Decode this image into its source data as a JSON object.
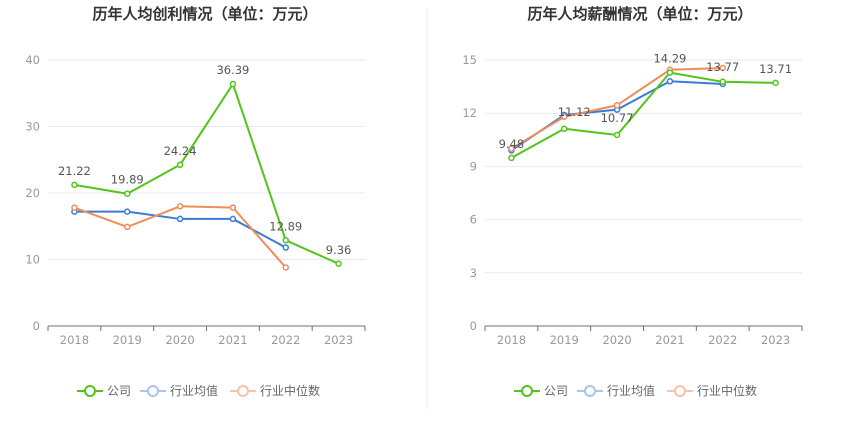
{
  "chart_data": [
    {
      "type": "line",
      "title": "历年人均创利情况（单位：万元）",
      "xlabel": "",
      "ylabel": "",
      "categories": [
        "2018",
        "2019",
        "2020",
        "2021",
        "2022",
        "2023"
      ],
      "yticks": [
        "0",
        "10",
        "20",
        "30",
        "40"
      ],
      "ylim": [
        0,
        40
      ],
      "grid": true,
      "legend_position": "bottom",
      "series": [
        {
          "name": "公司",
          "color": "#52c41a",
          "values": [
            21.22,
            19.89,
            24.24,
            36.39,
            12.89,
            9.36
          ],
          "labels": [
            "21.22",
            "19.89",
            "24.24",
            "36.39",
            "12.89",
            "9.36"
          ]
        },
        {
          "name": "行业均值",
          "color": "#3a7bd5",
          "values": [
            17.2,
            17.2,
            16.1,
            16.1,
            11.8,
            null
          ]
        },
        {
          "name": "行业中位数",
          "color": "#f08c5a",
          "values": [
            17.8,
            14.9,
            18.0,
            17.8,
            8.8,
            null
          ]
        }
      ]
    },
    {
      "type": "line",
      "title": "历年人均薪酬情况（单位：万元）",
      "xlabel": "",
      "ylabel": "",
      "categories": [
        "2018",
        "2019",
        "2020",
        "2021",
        "2022",
        "2023"
      ],
      "yticks": [
        "0",
        "3",
        "6",
        "9",
        "12",
        "15"
      ],
      "ylim": [
        0,
        15
      ],
      "grid": true,
      "legend_position": "bottom",
      "series": [
        {
          "name": "公司",
          "color": "#52c41a",
          "values": [
            9.48,
            11.12,
            10.77,
            14.29,
            13.77,
            13.71
          ],
          "labels": [
            "9.48",
            "11.12",
            "10.77",
            "14.29",
            "13.77",
            "13.71"
          ]
        },
        {
          "name": "行业均值",
          "color": "#3a7bd5",
          "values": [
            9.9,
            11.9,
            12.2,
            13.8,
            13.65,
            null
          ]
        },
        {
          "name": "行业中位数",
          "color": "#f08c5a",
          "values": [
            10.0,
            11.8,
            12.45,
            14.45,
            14.55,
            null
          ]
        }
      ]
    }
  ]
}
